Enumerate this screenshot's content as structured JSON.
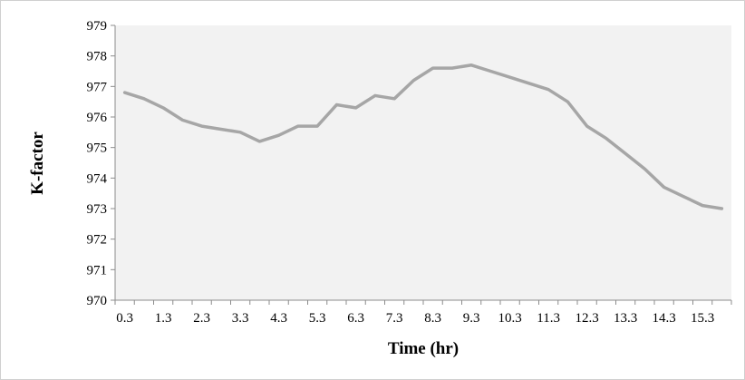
{
  "chart_data": {
    "type": "line",
    "title": "",
    "xlabel": "Time (hr)",
    "ylabel": "K-factor",
    "ylim": [
      970,
      979
    ],
    "y_ticks": [
      970,
      971,
      972,
      973,
      974,
      975,
      976,
      977,
      978,
      979
    ],
    "grid": false,
    "legend": "none",
    "colors": {
      "line": "#a6a6a6",
      "plot_background": "#f2f2f2",
      "axis": "#8c8c8c"
    },
    "x": [
      0.3,
      0.8,
      1.3,
      1.8,
      2.3,
      2.8,
      3.3,
      3.8,
      4.3,
      4.8,
      5.3,
      5.8,
      6.3,
      6.8,
      7.3,
      7.8,
      8.3,
      8.8,
      9.3,
      9.8,
      10.3,
      10.8,
      11.3,
      11.8,
      12.3,
      12.8,
      13.3,
      13.8,
      14.3,
      14.8,
      15.3,
      15.8
    ],
    "x_tick_labels": [
      "0.3",
      "",
      "1.3",
      "",
      "2.3",
      "",
      "3.3",
      "",
      "4.3",
      "",
      "5.3",
      "",
      "6.3",
      "",
      "7.3",
      "",
      "8.3",
      "",
      "9.3",
      "",
      "10.3",
      "",
      "11.3",
      "",
      "12.3",
      "",
      "13.3",
      "",
      "14.3",
      "",
      "15.3",
      ""
    ],
    "series": [
      {
        "values": [
          976.8,
          976.6,
          976.3,
          975.9,
          975.7,
          975.6,
          975.5,
          975.2,
          975.4,
          975.7,
          975.7,
          976.4,
          976.3,
          976.7,
          976.6,
          977.2,
          977.6,
          977.6,
          977.7,
          977.5,
          977.3,
          977.1,
          976.9,
          976.5,
          975.7,
          975.3,
          974.8,
          974.3,
          973.7,
          973.4,
          973.1,
          973.0
        ]
      }
    ]
  }
}
